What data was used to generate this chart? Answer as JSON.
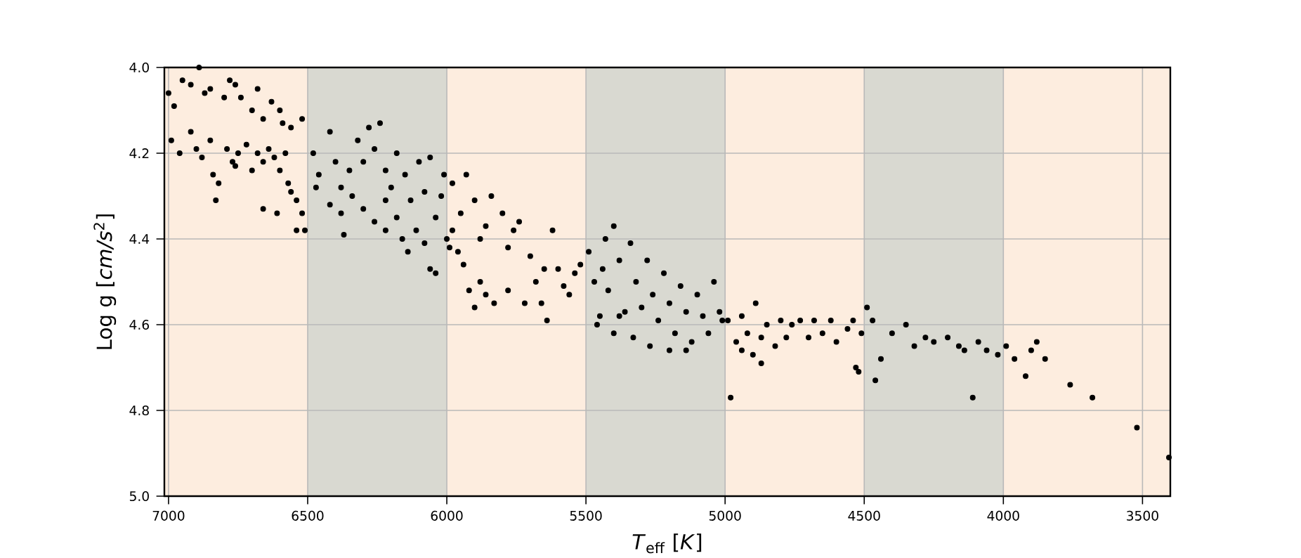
{
  "chart_data": {
    "type": "scatter",
    "xlabel": "*T*$_{eff}$  [*K*]",
    "ylabel": "Log g  [*cm/s*$^{2}$]",
    "xlim": [
      7015,
      3400
    ],
    "ylim": [
      5.0,
      4.0
    ],
    "xticks": [
      7000,
      6500,
      6000,
      5500,
      5000,
      4500,
      4000,
      3500
    ],
    "yticks": [
      {
        "value": 4.0,
        "label": "4.0"
      },
      {
        "value": 4.2,
        "label": "4.2"
      },
      {
        "value": 4.4,
        "label": "4.4"
      },
      {
        "value": 4.6,
        "label": "4.6"
      },
      {
        "value": 4.8,
        "label": "4.8"
      },
      {
        "value": 5.0,
        "label": "5.0"
      }
    ],
    "grid": true,
    "bands": [
      {
        "axis": "x",
        "from": 7015,
        "to": 6500,
        "color": "#fdeddf"
      },
      {
        "axis": "x",
        "from": 6500,
        "to": 6000,
        "color": "#d9d9d1"
      },
      {
        "axis": "x",
        "from": 6000,
        "to": 5500,
        "color": "#fdeddf"
      },
      {
        "axis": "x",
        "from": 5500,
        "to": 5000,
        "color": "#d9d9d1"
      },
      {
        "axis": "x",
        "from": 5000,
        "to": 4500,
        "color": "#fdeddf"
      },
      {
        "axis": "x",
        "from": 4500,
        "to": 4000,
        "color": "#d9d9d1"
      },
      {
        "axis": "x",
        "from": 4000,
        "to": 3400,
        "color": "#fdeddf"
      }
    ],
    "series": [
      {
        "color": "#000000",
        "x": [
          7000,
          6980,
          6950,
          6920,
          6890,
          6870,
          6850,
          6800,
          6780,
          6760,
          6740,
          6700,
          6680,
          6660,
          6630,
          6600,
          6590,
          6560,
          6520,
          6990,
          6960,
          6920,
          6900,
          6880,
          6850,
          6840,
          6820,
          6830,
          6790,
          6770,
          6750,
          6720,
          6700,
          6680,
          6660,
          6640,
          6620,
          6600,
          6580,
          6570,
          6560,
          6540,
          6520,
          6540,
          6510,
          6660,
          6610,
          6760,
          6480,
          6460,
          6420,
          6400,
          6380,
          6350,
          6320,
          6300,
          6280,
          6260,
          6240,
          6220,
          6200,
          6180,
          6150,
          6130,
          6100,
          6080,
          6060,
          6040,
          6020,
          6010,
          6470,
          6420,
          6380,
          6340,
          6300,
          6260,
          6220,
          6180,
          6160,
          6140,
          6110,
          6080,
          6060,
          6040,
          6000,
          6370,
          6220,
          5980,
          5950,
          5930,
          5900,
          5880,
          5860,
          5840,
          5800,
          5780,
          5760,
          5740,
          5700,
          5680,
          5650,
          5620,
          5600,
          5580,
          5560,
          5540,
          5520,
          5960,
          5940,
          5920,
          5900,
          5880,
          5860,
          5830,
          5780,
          5720,
          5660,
          5640,
          5980,
          5990,
          5490,
          5470,
          5450,
          5430,
          5420,
          5400,
          5380,
          5360,
          5340,
          5320,
          5300,
          5280,
          5260,
          5240,
          5220,
          5200,
          5180,
          5160,
          5140,
          5120,
          5100,
          5080,
          5060,
          5040,
          5020,
          5010,
          5460,
          5400,
          5330,
          5270,
          5200,
          5140,
          5380,
          5440,
          4990,
          4980,
          4960,
          4940,
          4920,
          4900,
          4890,
          4870,
          4850,
          4820,
          4800,
          4780,
          4760,
          4730,
          4700,
          4680,
          4650,
          4620,
          4600,
          4560,
          4540,
          4530,
          4520,
          4510,
          4490,
          4940,
          4870,
          4470,
          4460,
          4440,
          4400,
          4350,
          4320,
          4280,
          4250,
          4200,
          4160,
          4140,
          4110,
          4090,
          4060,
          4020,
          3990,
          3960,
          3920,
          3900,
          3880,
          3850,
          3760,
          3680,
          3520,
          3405
        ],
        "values": [
          4.06,
          4.09,
          4.03,
          4.04,
          4.0,
          4.06,
          4.05,
          4.07,
          4.03,
          4.04,
          4.07,
          4.1,
          4.05,
          4.12,
          4.08,
          4.1,
          4.13,
          4.14,
          4.12,
          4.17,
          4.2,
          4.15,
          4.19,
          4.21,
          4.17,
          4.25,
          4.27,
          4.31,
          4.19,
          4.22,
          4.2,
          4.18,
          4.24,
          4.2,
          4.22,
          4.19,
          4.21,
          4.24,
          4.2,
          4.27,
          4.29,
          4.31,
          4.34,
          4.38,
          4.38,
          4.33,
          4.34,
          4.23,
          4.2,
          4.25,
          4.15,
          4.22,
          4.28,
          4.24,
          4.17,
          4.22,
          4.14,
          4.19,
          4.13,
          4.24,
          4.28,
          4.2,
          4.25,
          4.31,
          4.22,
          4.29,
          4.21,
          4.35,
          4.3,
          4.25,
          4.28,
          4.32,
          4.34,
          4.3,
          4.33,
          4.36,
          4.31,
          4.35,
          4.4,
          4.43,
          4.38,
          4.41,
          4.47,
          4.48,
          4.4,
          4.39,
          4.38,
          4.27,
          4.34,
          4.25,
          4.31,
          4.4,
          4.37,
          4.3,
          4.34,
          4.42,
          4.38,
          4.36,
          4.44,
          4.5,
          4.47,
          4.38,
          4.47,
          4.51,
          4.53,
          4.48,
          4.46,
          4.43,
          4.46,
          4.52,
          4.56,
          4.5,
          4.53,
          4.55,
          4.52,
          4.55,
          4.55,
          4.59,
          4.38,
          4.42,
          4.43,
          4.5,
          4.58,
          4.4,
          4.52,
          4.37,
          4.45,
          4.57,
          4.41,
          4.5,
          4.56,
          4.45,
          4.53,
          4.59,
          4.48,
          4.55,
          4.62,
          4.51,
          4.57,
          4.64,
          4.53,
          4.58,
          4.62,
          4.5,
          4.57,
          4.59,
          4.6,
          4.62,
          4.63,
          4.65,
          4.66,
          4.66,
          4.58,
          4.47,
          4.59,
          4.77,
          4.64,
          4.58,
          4.62,
          4.67,
          4.55,
          4.63,
          4.6,
          4.65,
          4.59,
          4.63,
          4.6,
          4.59,
          4.63,
          4.59,
          4.62,
          4.59,
          4.64,
          4.61,
          4.59,
          4.7,
          4.71,
          4.62,
          4.56,
          4.66,
          4.69,
          4.59,
          4.73,
          4.68,
          4.62,
          4.6,
          4.65,
          4.63,
          4.64,
          4.63,
          4.65,
          4.66,
          4.77,
          4.64,
          4.66,
          4.67,
          4.65,
          4.68,
          4.72,
          4.66,
          4.64,
          4.68,
          4.74,
          4.77,
          4.84,
          4.91
        ]
      }
    ]
  }
}
